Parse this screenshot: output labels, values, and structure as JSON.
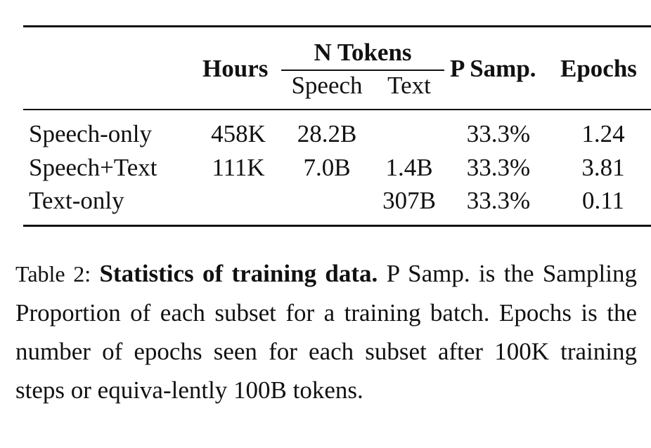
{
  "table": {
    "headers": {
      "hours": "Hours",
      "n_tokens": "N Tokens",
      "speech": "Speech",
      "text": "Text",
      "p_samp": "P Samp.",
      "epochs": "Epochs"
    },
    "rows": [
      {
        "name": "Speech-only",
        "hours": "458K",
        "speech": "28.2B",
        "text": "",
        "p_samp": "33.3%",
        "epochs": "1.24"
      },
      {
        "name": "Speech+Text",
        "hours": "111K",
        "speech": "7.0B",
        "text": "1.4B",
        "p_samp": "33.3%",
        "epochs": "3.81"
      },
      {
        "name": "Text-only",
        "hours": "",
        "speech": "",
        "text": "307B",
        "p_samp": "33.3%",
        "epochs": "0.11"
      }
    ]
  },
  "caption": {
    "label": "Table 2:",
    "bold": "Statistics of training data.",
    "text": " P Samp. is the Sampling Proportion of each subset for a training batch.  Epochs is the number of epochs seen for each subset after 100K training steps or equiva-lently 100B tokens."
  }
}
